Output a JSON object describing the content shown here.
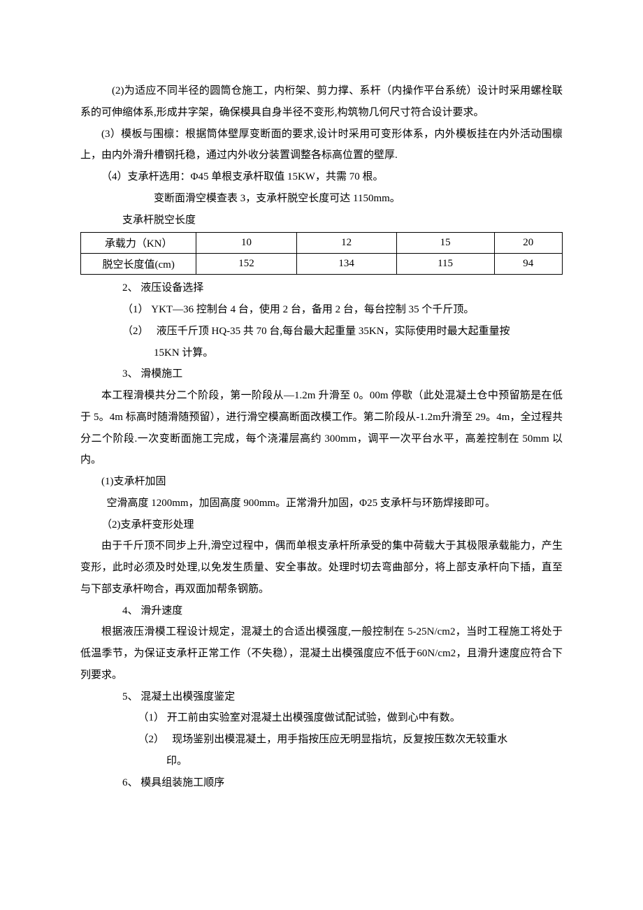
{
  "paragraphs": {
    "p1": "(2)为适应不同半径的圆筒仓施工，内桁架、剪力撑、系杆（内操作平台系统）设计时采用螺栓联系的可伸缩体系,形成井字架，确保模具自身半径不变形,构筑物几何尺寸符合设计要求。",
    "p2": "(3）模板与围檩：根据筒体壁厚变断面的要求,设计时采用可变形体系，内外模板挂在内外活动围檩上，由内外滑升槽钢托稳，通过内外收分装置调整各标高位置的壁厚.",
    "p3": "（4）支承杆选用：Φ45 单根支承杆取值 15KW，共需 70 根。",
    "p4": "变断面滑空模查表 3，支承杆脱空长度可达 1150mm。",
    "p5": "支承杆脱空长度",
    "p6": "2、 液压设备选择",
    "p7": "（1）   YKT—36 控制台 4 台，使用 2 台，备用 2 台，每台控制 35 个千斤顶。",
    "p8": "（2）   液压千斤顶 HQ-35 共 70 台,每台最大起重量 35KN，实际使用时最大起重量按15KN 计算。",
    "p9": "3、 滑模施工",
    "p10": "本工程滑模共分二个阶段，第一阶段从—1.2m 升滑至 0。00m 停歇（此处混凝土仓中预留筋是在低于 5。4m 标高时随滑随预留），进行滑空模高断面改模工作。第二阶段从-1.2m升滑至 29。4m，全过程共分二个阶段.一次变断面施工完成，每个浇灌层高约 300mm，调平一次平台水平，高差控制在 50mm 以内。",
    "p11": "(1)支承杆加固",
    "p12": "空滑高度 1200mm，加固高度 900mm。正常滑升加固，Φ25 支承杆与环筋焊接即可。",
    "p13": "（2)支承杆变形处理",
    "p14": "由于千斤顶不同步上升,滑空过程中，偶而单根支承杆所承受的集中荷载大于其极限承载能力，产生变形，此时必须及时处理,以免发生质量、安全事故。处理时切去弯曲部分，将上部支承杆向下插，直至与下部支承杆吻合，再双面加帮条钢筋。",
    "p15": "4、 滑升速度",
    "p16": "根据液压滑模工程设计规定，混凝土的合适出模强度,一般控制在 5-25N/cm2，当时工程施工将处于低温季节，为保证支承杆正常工作（不失稳），混凝土出模强度应不低于60N/cm2，且滑升速度应符合下列要求。",
    "p17": "5、 混凝土出模强度鉴定",
    "p18": "（1）   开工前由实验室对混凝土出模强度做试配试验，做到心中有数。",
    "p19": "（2）   现场鉴别出模混凝土，用手指按压应无明显指坑，反复按压数次无较重水印。",
    "p20": "6、 模具组装施工顺序"
  },
  "table": {
    "row1_header": "承载力（KN）",
    "row1_c1": "10",
    "row1_c2": "12",
    "row1_c3": "15",
    "row1_c4": "20",
    "row2_header": "脱空长度值(cm)",
    "row2_c1": "152",
    "row2_c2": "134",
    "row2_c3": "115",
    "row2_c4": "94"
  }
}
